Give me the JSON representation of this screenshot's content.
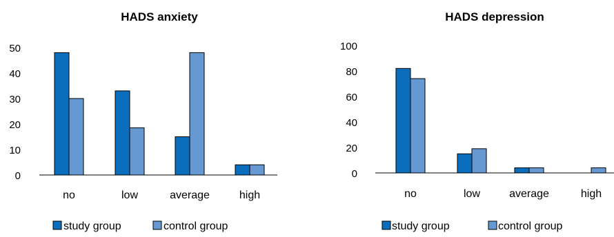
{
  "chart_data": [
    {
      "type": "bar",
      "title": "HADS anxiety",
      "categories": [
        "no",
        "low",
        "average",
        "high"
      ],
      "series": [
        {
          "name": "study group",
          "values": [
            48,
            33,
            15,
            4
          ],
          "color": "#0a6ebd"
        },
        {
          "name": "control group",
          "values": [
            30,
            18.5,
            48,
            4
          ],
          "color": "#6699d2"
        }
      ],
      "xlabel": "",
      "ylabel": "",
      "ylim": [
        0,
        50
      ],
      "yticks": [
        "0",
        "10",
        "20",
        "30",
        "40",
        "50"
      ],
      "grid": false,
      "legend_position": "bottom"
    },
    {
      "type": "bar",
      "title": "HADS depression",
      "categories": [
        "no",
        "low",
        "average",
        "high"
      ],
      "series": [
        {
          "name": "study group",
          "values": [
            82,
            15,
            4,
            0
          ],
          "color": "#0a6ebd"
        },
        {
          "name": "control group",
          "values": [
            74,
            19,
            4,
            4
          ],
          "color": "#6699d2"
        }
      ],
      "xlabel": "",
      "ylabel": "",
      "ylim": [
        0,
        100
      ],
      "yticks": [
        "0",
        "20",
        "40",
        "60",
        "80",
        "100"
      ],
      "grid": false,
      "legend_position": "bottom"
    }
  ]
}
